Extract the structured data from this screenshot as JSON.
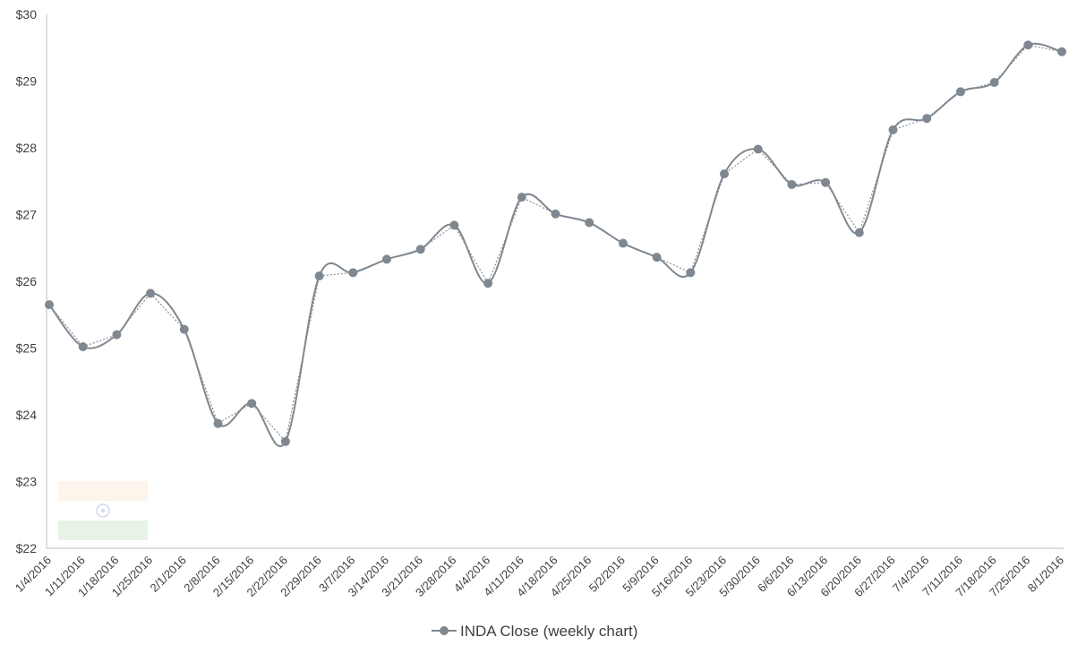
{
  "chart_data": {
    "type": "line",
    "title": "",
    "xlabel": "",
    "ylabel": "",
    "ylim": [
      22,
      30
    ],
    "y_ticks": [
      "$22",
      "$23",
      "$24",
      "$25",
      "$26",
      "$27",
      "$28",
      "$29",
      "$30"
    ],
    "grid": false,
    "legend_position": "bottom",
    "categories": [
      "1/4/2016",
      "1/11/2016",
      "1/18/2016",
      "1/25/2016",
      "2/1/2016",
      "2/8/2016",
      "2/15/2016",
      "2/22/2016",
      "2/29/2016",
      "3/7/2016",
      "3/14/2016",
      "3/21/2016",
      "3/28/2016",
      "4/4/2016",
      "4/11/2016",
      "4/18/2016",
      "4/25/2016",
      "5/2/2016",
      "5/9/2016",
      "5/16/2016",
      "5/23/2016",
      "5/30/2016",
      "6/6/2016",
      "6/13/2016",
      "6/20/2016",
      "6/27/2016",
      "7/4/2016",
      "7/11/2016",
      "7/18/2016",
      "7/25/2016",
      "8/1/2016"
    ],
    "series": [
      {
        "name": "INDA Close (weekly chart)",
        "color": "#7f8891",
        "values": [
          25.65,
          25.02,
          25.2,
          25.82,
          25.28,
          23.87,
          24.17,
          23.6,
          26.08,
          26.13,
          26.33,
          26.48,
          26.84,
          25.97,
          27.26,
          27.01,
          26.88,
          26.57,
          26.36,
          26.13,
          27.61,
          27.98,
          27.45,
          27.48,
          26.73,
          28.27,
          28.44,
          28.84,
          28.98,
          29.54,
          29.44
        ]
      }
    ]
  },
  "decor": {
    "flag_icon": "india-flag-icon",
    "flag_colors": [
      "#fdf4eb",
      "#ffffff",
      "#e6f3e6"
    ],
    "chakra_color": "#d4d8ee"
  }
}
